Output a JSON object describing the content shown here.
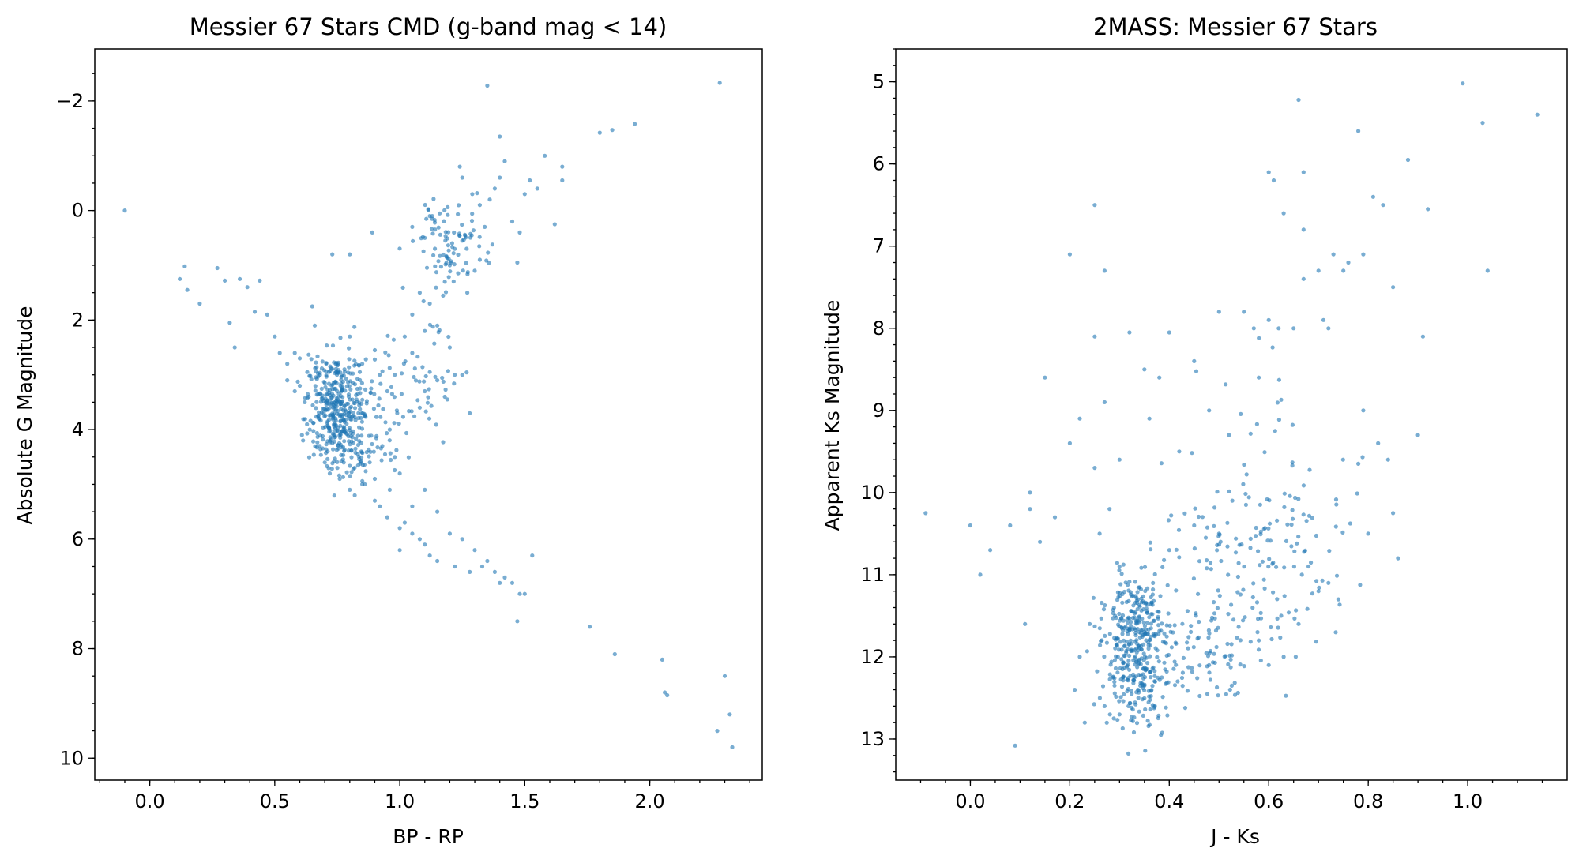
{
  "chart_data": [
    {
      "type": "scatter",
      "title": "Messier 67 Stars CMD (g-band mag < 14)",
      "xlabel": "BP - RP",
      "ylabel": "Absolute G Magnitude",
      "xlim": [
        -0.22,
        2.45
      ],
      "ylim": [
        10.4,
        -2.95
      ],
      "y_inverted": true,
      "xticks": [
        "0.0",
        "0.5",
        "1.0",
        "1.5",
        "2.0"
      ],
      "yticks": [
        "−2",
        "0",
        "2",
        "4",
        "6",
        "8",
        "10"
      ],
      "grid": false,
      "color": "#1f77b4",
      "point_opacity": 0.6,
      "dense_regions": [
        {
          "cx": 0.75,
          "cy": 3.6,
          "sx": 0.06,
          "sy": 0.55,
          "n": 380
        },
        {
          "cx": 0.85,
          "cy": 4.4,
          "sx": 0.08,
          "sy": 0.35,
          "n": 60
        },
        {
          "cx": 1.2,
          "cy": 0.6,
          "sx": 0.08,
          "sy": 0.45,
          "n": 90
        },
        {
          "cx": 1.0,
          "cy": 3.2,
          "sx": 0.12,
          "sy": 0.5,
          "n": 70
        }
      ],
      "points": [
        [
          -0.1,
          0.0
        ],
        [
          0.12,
          1.25
        ],
        [
          0.14,
          1.02
        ],
        [
          0.15,
          1.45
        ],
        [
          0.2,
          1.7
        ],
        [
          0.27,
          1.05
        ],
        [
          0.3,
          1.28
        ],
        [
          0.32,
          2.05
        ],
        [
          0.34,
          2.5
        ],
        [
          0.36,
          1.25
        ],
        [
          0.39,
          1.4
        ],
        [
          0.42,
          1.85
        ],
        [
          0.44,
          1.28
        ],
        [
          0.47,
          1.9
        ],
        [
          0.5,
          2.3
        ],
        [
          0.55,
          2.8
        ],
        [
          0.58,
          2.6
        ],
        [
          0.6,
          2.7
        ],
        [
          0.63,
          2.95
        ],
        [
          0.65,
          1.75
        ],
        [
          0.66,
          2.1
        ],
        [
          0.8,
          2.3
        ],
        [
          0.85,
          2.8
        ],
        [
          0.9,
          2.55
        ],
        [
          0.92,
          3.0
        ],
        [
          0.95,
          3.3
        ],
        [
          0.98,
          3.0
        ],
        [
          1.02,
          2.3
        ],
        [
          1.05,
          2.6
        ],
        [
          1.08,
          3.6
        ],
        [
          1.1,
          3.3
        ],
        [
          1.12,
          2.95
        ],
        [
          1.15,
          3.1
        ],
        [
          1.18,
          3.4
        ],
        [
          1.2,
          2.5
        ],
        [
          1.22,
          3.0
        ],
        [
          1.25,
          3.0
        ],
        [
          1.28,
          3.7
        ],
        [
          1.1,
          2.2
        ],
        [
          1.05,
          1.9
        ],
        [
          1.08,
          1.5
        ],
        [
          1.12,
          1.7
        ],
        [
          1.15,
          2.1
        ],
        [
          1.18,
          1.3
        ],
        [
          1.2,
          1.0
        ],
        [
          1.22,
          0.7
        ],
        [
          1.25,
          0.55
        ],
        [
          1.27,
          1.5
        ],
        [
          1.3,
          1.1
        ],
        [
          1.32,
          0.9
        ],
        [
          1.34,
          0.3
        ],
        [
          1.36,
          -0.2
        ],
        [
          1.38,
          -0.4
        ],
        [
          1.4,
          -0.6
        ],
        [
          1.42,
          -0.9
        ],
        [
          1.45,
          0.2
        ],
        [
          1.48,
          0.4
        ],
        [
          1.5,
          -0.3
        ],
        [
          1.52,
          -0.55
        ],
        [
          1.55,
          -0.4
        ],
        [
          1.58,
          -1.0
        ],
        [
          1.62,
          0.25
        ],
        [
          1.65,
          -0.8
        ],
        [
          1.65,
          -0.55
        ],
        [
          1.8,
          -1.42
        ],
        [
          1.85,
          -1.47
        ],
        [
          1.94,
          -1.58
        ],
        [
          1.4,
          -1.35
        ],
        [
          1.35,
          -2.28
        ],
        [
          2.28,
          -2.33
        ],
        [
          1.24,
          -0.8
        ],
        [
          1.25,
          -0.6
        ],
        [
          1.29,
          -0.3
        ],
        [
          1.32,
          -0.1
        ],
        [
          1.47,
          0.95
        ],
        [
          1.13,
          0.1
        ],
        [
          0.73,
          0.8
        ],
        [
          0.8,
          0.8
        ],
        [
          0.89,
          0.4
        ],
        [
          1.05,
          0.3
        ],
        [
          1.1,
          0.5
        ],
        [
          1.12,
          0.1
        ],
        [
          0.98,
          4.5
        ],
        [
          1.0,
          4.8
        ],
        [
          1.05,
          5.4
        ],
        [
          1.1,
          5.1
        ],
        [
          1.15,
          5.5
        ],
        [
          1.2,
          5.9
        ],
        [
          1.25,
          6.0
        ],
        [
          1.3,
          6.2
        ],
        [
          1.35,
          6.4
        ],
        [
          1.38,
          6.6
        ],
        [
          1.42,
          6.7
        ],
        [
          1.45,
          6.8
        ],
        [
          1.48,
          7.0
        ],
        [
          1.5,
          7.0
        ],
        [
          1.47,
          7.5
        ],
        [
          1.53,
          6.3
        ],
        [
          0.85,
          5.0
        ],
        [
          0.9,
          5.3
        ],
        [
          0.95,
          5.6
        ],
        [
          1.0,
          5.8
        ],
        [
          1.02,
          5.7
        ],
        [
          1.05,
          5.9
        ],
        [
          1.08,
          6.0
        ],
        [
          1.1,
          6.1
        ],
        [
          1.12,
          6.3
        ],
        [
          1.15,
          6.4
        ],
        [
          1.22,
          6.5
        ],
        [
          1.28,
          6.6
        ],
        [
          1.33,
          6.5
        ],
        [
          1.4,
          6.8
        ],
        [
          1.0,
          6.2
        ],
        [
          0.92,
          5.4
        ],
        [
          0.96,
          5.1
        ],
        [
          1.76,
          7.6
        ],
        [
          1.86,
          8.1
        ],
        [
          2.05,
          8.2
        ],
        [
          2.06,
          8.8
        ],
        [
          2.07,
          8.85
        ],
        [
          2.3,
          8.5
        ],
        [
          2.32,
          9.2
        ],
        [
          2.27,
          9.5
        ],
        [
          2.33,
          9.8
        ],
        [
          0.52,
          2.6
        ],
        [
          0.55,
          3.1
        ],
        [
          0.58,
          3.3
        ],
        [
          0.62,
          3.5
        ],
        [
          0.6,
          3.2
        ],
        [
          0.64,
          4.0
        ],
        [
          0.68,
          4.3
        ],
        [
          0.7,
          4.6
        ],
        [
          0.72,
          4.8
        ],
        [
          0.76,
          4.9
        ],
        [
          0.8,
          5.1
        ],
        [
          0.82,
          5.2
        ],
        [
          0.86,
          5.0
        ],
        [
          0.9,
          4.9
        ],
        [
          0.88,
          4.6
        ],
        [
          0.93,
          4.3
        ],
        [
          0.96,
          4.0
        ],
        [
          0.99,
          3.7
        ]
      ]
    },
    {
      "type": "scatter",
      "title": "2MASS: Messier 67 Stars",
      "xlabel": "J - Ks",
      "ylabel": "Apparent Ks Magnitude",
      "xlim": [
        -0.15,
        1.2
      ],
      "ylim": [
        13.5,
        4.6
      ],
      "y_inverted": true,
      "xticks": [
        "0.0",
        "0.2",
        "0.4",
        "0.6",
        "0.8",
        "1.0"
      ],
      "yticks": [
        "5",
        "6",
        "7",
        "8",
        "9",
        "10",
        "11",
        "12",
        "13"
      ],
      "grid": false,
      "color": "#1f77b4",
      "point_opacity": 0.6,
      "dense_regions": [
        {
          "cx": 0.33,
          "cy": 12.0,
          "sx": 0.035,
          "sy": 0.4,
          "n": 320
        },
        {
          "cx": 0.33,
          "cy": 11.35,
          "sx": 0.03,
          "sy": 0.2,
          "n": 70
        },
        {
          "cx": 0.45,
          "cy": 12.1,
          "sx": 0.06,
          "sy": 0.3,
          "n": 80
        },
        {
          "cx": 0.55,
          "cy": 11.1,
          "sx": 0.1,
          "sy": 0.6,
          "n": 120
        },
        {
          "cx": 0.6,
          "cy": 10.2,
          "sx": 0.08,
          "sy": 0.7,
          "n": 80
        }
      ],
      "points": [
        [
          -0.09,
          10.25
        ],
        [
          0.0,
          10.4
        ],
        [
          0.02,
          11.0
        ],
        [
          0.04,
          10.7
        ],
        [
          0.09,
          13.08
        ],
        [
          0.08,
          10.4
        ],
        [
          0.11,
          11.6
        ],
        [
          0.12,
          10.2
        ],
        [
          0.12,
          10.0
        ],
        [
          0.14,
          10.6
        ],
        [
          0.15,
          8.6
        ],
        [
          0.17,
          10.3
        ],
        [
          0.2,
          7.1
        ],
        [
          0.2,
          9.4
        ],
        [
          0.22,
          9.1
        ],
        [
          0.25,
          6.5
        ],
        [
          0.25,
          8.1
        ],
        [
          0.27,
          7.3
        ],
        [
          0.27,
          8.9
        ],
        [
          0.3,
          9.6
        ],
        [
          0.32,
          8.05
        ],
        [
          0.35,
          8.5
        ],
        [
          0.36,
          9.1
        ],
        [
          0.38,
          8.6
        ],
        [
          0.4,
          8.05
        ],
        [
          0.42,
          9.5
        ],
        [
          0.45,
          8.4
        ],
        [
          0.48,
          9.0
        ],
        [
          0.5,
          7.8
        ],
        [
          0.52,
          9.3
        ],
        [
          0.55,
          7.8
        ],
        [
          0.57,
          8.0
        ],
        [
          0.58,
          8.6
        ],
        [
          0.6,
          7.9
        ],
        [
          0.6,
          6.1
        ],
        [
          0.61,
          6.2
        ],
        [
          0.62,
          8.0
        ],
        [
          0.63,
          6.6
        ],
        [
          0.65,
          8.0
        ],
        [
          0.66,
          5.22
        ],
        [
          0.67,
          6.1
        ],
        [
          0.67,
          6.8
        ],
        [
          0.67,
          7.4
        ],
        [
          0.7,
          7.3
        ],
        [
          0.71,
          7.9
        ],
        [
          0.72,
          8.0
        ],
        [
          0.73,
          7.1
        ],
        [
          0.75,
          7.3
        ],
        [
          0.76,
          7.2
        ],
        [
          0.78,
          5.6
        ],
        [
          0.79,
          7.1
        ],
        [
          0.81,
          6.4
        ],
        [
          0.83,
          6.5
        ],
        [
          0.85,
          7.5
        ],
        [
          0.86,
          10.8
        ],
        [
          0.88,
          5.95
        ],
        [
          0.9,
          9.3
        ],
        [
          0.91,
          8.1
        ],
        [
          0.92,
          6.55
        ],
        [
          0.99,
          5.02
        ],
        [
          1.03,
          5.5
        ],
        [
          1.04,
          7.3
        ],
        [
          1.14,
          5.4
        ],
        [
          0.79,
          9.0
        ],
        [
          0.8,
          10.5
        ],
        [
          0.82,
          9.4
        ],
        [
          0.84,
          9.6
        ],
        [
          0.85,
          10.25
        ],
        [
          0.78,
          9.65
        ],
        [
          0.74,
          11.3
        ],
        [
          0.7,
          11.2
        ],
        [
          0.72,
          11.1
        ],
        [
          0.68,
          10.9
        ],
        [
          0.66,
          11.6
        ],
        [
          0.63,
          12.0
        ],
        [
          0.6,
          12.1
        ],
        [
          0.58,
          11.8
        ],
        [
          0.28,
          10.2
        ],
        [
          0.26,
          10.5
        ],
        [
          0.25,
          9.7
        ],
        [
          0.3,
          10.9
        ],
        [
          0.24,
          11.6
        ],
        [
          0.22,
          12.0
        ],
        [
          0.21,
          12.4
        ],
        [
          0.23,
          12.8
        ],
        [
          0.27,
          12.6
        ],
        [
          0.3,
          12.7
        ],
        [
          0.4,
          10.7
        ],
        [
          0.45,
          10.4
        ],
        [
          0.5,
          10.5
        ]
      ]
    }
  ]
}
